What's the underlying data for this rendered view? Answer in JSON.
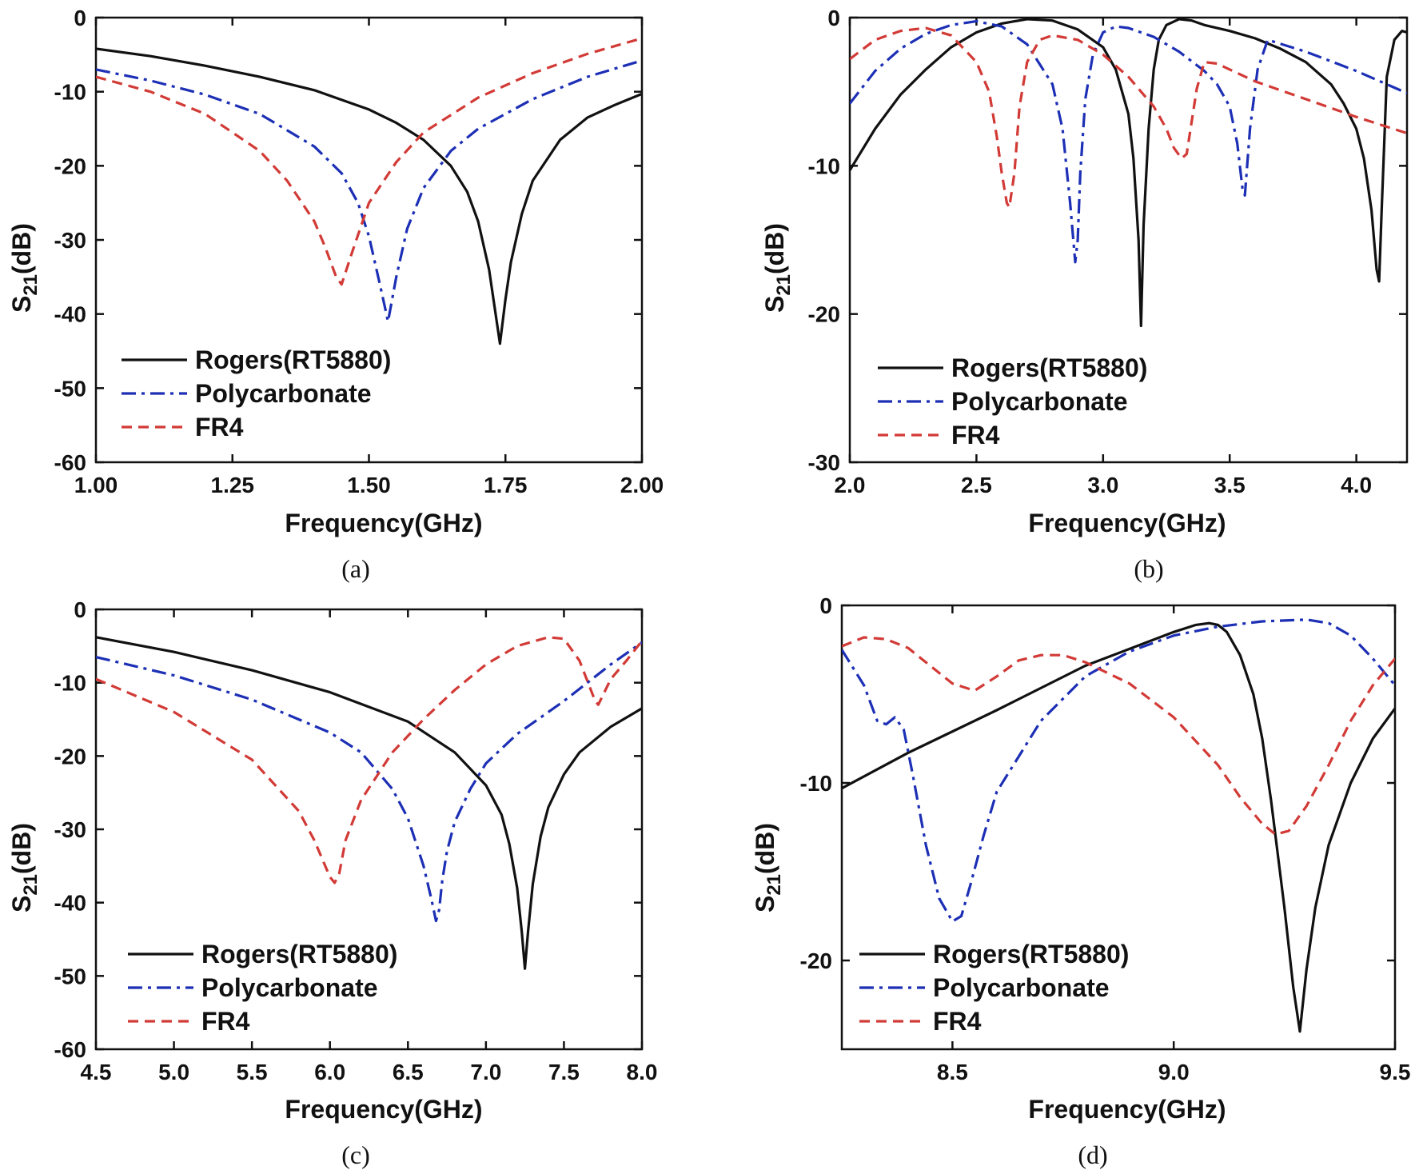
{
  "colors": {
    "rogers": "#111111",
    "polycarbonate": "#1c2fb5",
    "fr4": "#d23a36"
  },
  "legend": [
    "Rogers(RT5880)",
    "Polycarbonate",
    "FR4"
  ],
  "chart_data": [
    {
      "id": "a",
      "type": "line",
      "caption": "(a)",
      "xlabel": "Frequency(GHz)",
      "ylabel_main": "S",
      "ylabel_sub": "21",
      "ylabel_unit": "(dB)",
      "xlim": [
        1.0,
        2.0
      ],
      "ylim": [
        -60,
        0
      ],
      "xticks": [
        1.0,
        1.25,
        1.5,
        1.75,
        2.0
      ],
      "xtick_labels": [
        "1.00",
        "1.25",
        "1.50",
        "1.75",
        "2.00"
      ],
      "yticks": [
        0,
        -10,
        -20,
        -30,
        -40,
        -50,
        -60
      ],
      "ytick_labels": [
        "0",
        "-10",
        "-20",
        "-30",
        "-40",
        "-50",
        "-60"
      ],
      "series": [
        {
          "name": "Rogers(RT5880)",
          "style": "solid",
          "x": [
            1.0,
            1.1,
            1.2,
            1.3,
            1.4,
            1.5,
            1.55,
            1.6,
            1.65,
            1.68,
            1.7,
            1.72,
            1.73,
            1.74,
            1.75,
            1.76,
            1.78,
            1.8,
            1.85,
            1.9,
            1.95,
            2.0
          ],
          "y": [
            -4.2,
            -5.2,
            -6.5,
            -8.0,
            -9.8,
            -12.4,
            -14.2,
            -16.5,
            -20.0,
            -23.5,
            -27.5,
            -34.0,
            -39.0,
            -44.0,
            -38.0,
            -33.0,
            -26.5,
            -22.0,
            -16.5,
            -13.5,
            -11.8,
            -10.3
          ]
        },
        {
          "name": "Polycarbonate",
          "style": "dashdot",
          "x": [
            1.0,
            1.1,
            1.2,
            1.3,
            1.4,
            1.45,
            1.48,
            1.5,
            1.52,
            1.535,
            1.55,
            1.57,
            1.6,
            1.65,
            1.7,
            1.8,
            1.9,
            2.0
          ],
          "y": [
            -7.0,
            -8.5,
            -10.4,
            -13.0,
            -17.4,
            -21.0,
            -25.0,
            -29.5,
            -36.0,
            -41.0,
            -35.0,
            -28.5,
            -23.0,
            -18.0,
            -15.0,
            -11.0,
            -8.0,
            -5.8
          ]
        },
        {
          "name": "FR4",
          "style": "dashed",
          "x": [
            1.0,
            1.1,
            1.2,
            1.3,
            1.35,
            1.4,
            1.42,
            1.44,
            1.45,
            1.47,
            1.5,
            1.55,
            1.6,
            1.7,
            1.8,
            1.9,
            2.0
          ],
          "y": [
            -8.0,
            -10.0,
            -13.0,
            -18.0,
            -22.0,
            -27.5,
            -31.0,
            -35.0,
            -36.0,
            -31.5,
            -25.0,
            -19.5,
            -15.5,
            -10.8,
            -7.5,
            -4.9,
            -2.8
          ]
        }
      ]
    },
    {
      "id": "b",
      "type": "line",
      "caption": "(b)",
      "xlabel": "Frequency(GHz)",
      "ylabel_main": "S",
      "ylabel_sub": "21",
      "ylabel_unit": "(dB)",
      "xlim": [
        2.0,
        4.2
      ],
      "ylim": [
        -30,
        0
      ],
      "xticks": [
        2.0,
        2.5,
        3.0,
        3.5,
        4.0
      ],
      "xtick_labels": [
        "2.0",
        "2.5",
        "3.0",
        "3.5",
        "4.0"
      ],
      "yticks": [
        0,
        -10,
        -20,
        -30
      ],
      "ytick_labels": [
        "0",
        "-10",
        "-20",
        "-30"
      ],
      "series": [
        {
          "name": "Rogers(RT5880)",
          "style": "solid",
          "x": [
            2.0,
            2.1,
            2.2,
            2.3,
            2.4,
            2.5,
            2.6,
            2.7,
            2.8,
            2.9,
            3.0,
            3.05,
            3.1,
            3.12,
            3.14,
            3.15,
            3.16,
            3.18,
            3.2,
            3.22,
            3.25,
            3.3,
            3.35,
            3.4,
            3.5,
            3.6,
            3.7,
            3.8,
            3.9,
            3.95,
            4.0,
            4.03,
            4.06,
            4.08,
            4.09,
            4.1,
            4.12,
            4.15,
            4.18,
            4.2
          ],
          "y": [
            -10.3,
            -7.5,
            -5.2,
            -3.5,
            -2.0,
            -1.0,
            -0.4,
            -0.1,
            -0.2,
            -0.8,
            -2.0,
            -3.5,
            -6.5,
            -9.5,
            -15.0,
            -20.8,
            -14.0,
            -7.5,
            -3.5,
            -1.5,
            -0.5,
            -0.1,
            -0.2,
            -0.5,
            -0.9,
            -1.4,
            -2.1,
            -3.0,
            -4.5,
            -5.8,
            -7.5,
            -9.5,
            -13.0,
            -17.0,
            -17.8,
            -13.0,
            -4.0,
            -1.5,
            -0.9,
            -1.0
          ]
        },
        {
          "name": "Polycarbonate",
          "style": "dashdot",
          "x": [
            2.0,
            2.1,
            2.2,
            2.3,
            2.4,
            2.5,
            2.6,
            2.7,
            2.8,
            2.84,
            2.87,
            2.89,
            2.9,
            2.91,
            2.93,
            2.96,
            3.0,
            3.05,
            3.1,
            3.2,
            3.3,
            3.4,
            3.45,
            3.5,
            3.53,
            3.55,
            3.56,
            3.58,
            3.61,
            3.65,
            3.8,
            4.0,
            4.2
          ],
          "y": [
            -5.8,
            -3.6,
            -2.1,
            -1.1,
            -0.5,
            -0.25,
            -0.6,
            -1.8,
            -4.5,
            -7.5,
            -12.5,
            -16.5,
            -15.0,
            -10.5,
            -5.5,
            -2.5,
            -1.0,
            -0.6,
            -0.7,
            -1.3,
            -2.3,
            -3.6,
            -4.5,
            -6.0,
            -8.5,
            -11.5,
            -12.0,
            -7.5,
            -3.5,
            -1.5,
            -2.3,
            -3.6,
            -5.1
          ]
        },
        {
          "name": "FR4",
          "style": "dashed",
          "x": [
            2.0,
            2.1,
            2.2,
            2.3,
            2.4,
            2.5,
            2.55,
            2.58,
            2.6,
            2.62,
            2.63,
            2.65,
            2.67,
            2.7,
            2.75,
            2.8,
            2.9,
            3.0,
            3.1,
            3.2,
            3.25,
            3.28,
            3.31,
            3.33,
            3.35,
            3.37,
            3.4,
            3.45,
            3.5,
            3.6,
            3.8,
            4.0,
            4.2
          ],
          "y": [
            -2.8,
            -1.5,
            -0.9,
            -0.7,
            -1.2,
            -3.0,
            -5.0,
            -8.0,
            -10.5,
            -12.5,
            -12.8,
            -10.5,
            -6.0,
            -3.0,
            -1.5,
            -1.2,
            -1.5,
            -2.5,
            -4.0,
            -6.0,
            -7.5,
            -8.8,
            -9.5,
            -9.2,
            -7.0,
            -4.8,
            -3.0,
            -3.1,
            -3.5,
            -4.3,
            -5.5,
            -6.7,
            -7.8
          ]
        }
      ]
    },
    {
      "id": "c",
      "type": "line",
      "caption": "(c)",
      "xlabel": "Frequency(GHz)",
      "ylabel_main": "S",
      "ylabel_sub": "21",
      "ylabel_unit": "(dB)",
      "xlim": [
        4.5,
        8.0
      ],
      "ylim": [
        -60,
        0
      ],
      "xticks": [
        4.5,
        5.0,
        5.5,
        6.0,
        6.5,
        7.0,
        7.5,
        8.0
      ],
      "xtick_labels": [
        "4.5",
        "5.0",
        "5.5",
        "6.0",
        "6.5",
        "7.0",
        "7.5",
        "8.0"
      ],
      "yticks": [
        0,
        -10,
        -20,
        -30,
        -40,
        -50,
        -60
      ],
      "ytick_labels": [
        "0",
        "-10",
        "-20",
        "-30",
        "-40",
        "-50",
        "-60"
      ],
      "series": [
        {
          "name": "Rogers(RT5880)",
          "style": "solid",
          "x": [
            4.5,
            5.0,
            5.5,
            6.0,
            6.5,
            6.8,
            7.0,
            7.1,
            7.15,
            7.2,
            7.23,
            7.25,
            7.27,
            7.3,
            7.35,
            7.4,
            7.5,
            7.6,
            7.8,
            8.0
          ],
          "y": [
            -3.8,
            -5.8,
            -8.3,
            -11.3,
            -15.3,
            -19.5,
            -24.0,
            -28.0,
            -32.0,
            -38.0,
            -44.0,
            -49.0,
            -44.0,
            -37.5,
            -31.0,
            -27.0,
            -22.5,
            -19.5,
            -16.0,
            -13.5
          ]
        },
        {
          "name": "Polycarbonate",
          "style": "dashdot",
          "x": [
            4.5,
            5.0,
            5.5,
            6.0,
            6.2,
            6.4,
            6.5,
            6.6,
            6.65,
            6.68,
            6.7,
            6.72,
            6.75,
            6.8,
            6.9,
            7.0,
            7.2,
            7.5,
            7.8,
            8.0
          ],
          "y": [
            -6.5,
            -9.0,
            -12.3,
            -16.8,
            -19.5,
            -24.5,
            -28.5,
            -35.0,
            -39.5,
            -42.5,
            -41.0,
            -37.0,
            -33.0,
            -29.0,
            -24.5,
            -21.0,
            -17.0,
            -12.5,
            -7.5,
            -4.5
          ]
        },
        {
          "name": "FR4",
          "style": "dashed",
          "x": [
            4.5,
            5.0,
            5.5,
            5.8,
            5.9,
            6.0,
            6.03,
            6.06,
            6.1,
            6.2,
            6.4,
            6.6,
            6.8,
            7.0,
            7.2,
            7.4,
            7.5,
            7.6,
            7.7,
            7.72,
            7.8,
            7.9,
            8.0
          ],
          "y": [
            -9.5,
            -14.0,
            -20.5,
            -27.5,
            -31.5,
            -36.5,
            -37.3,
            -36.0,
            -31.5,
            -26.0,
            -19.5,
            -15.0,
            -11.0,
            -7.5,
            -5.0,
            -3.8,
            -4.0,
            -7.0,
            -12.5,
            -13.0,
            -9.5,
            -7.0,
            -4.3
          ]
        }
      ]
    },
    {
      "id": "d",
      "type": "line",
      "caption": "(d)",
      "xlabel": "Frequency(GHz)",
      "ylabel_main": "S",
      "ylabel_sub": "21",
      "ylabel_unit": "(dB)",
      "xlim": [
        8.25,
        9.5
      ],
      "ylim": [
        -25,
        0
      ],
      "xticks": [
        8.5,
        9.0,
        9.5
      ],
      "xtick_labels": [
        "8.5",
        "9.0",
        "9.5"
      ],
      "yticks": [
        0,
        -10,
        -20
      ],
      "ytick_labels": [
        "0",
        "-10",
        "-20"
      ],
      "series": [
        {
          "name": "Rogers(RT5880)",
          "style": "solid",
          "x": [
            8.25,
            8.4,
            8.6,
            8.8,
            9.0,
            9.05,
            9.08,
            9.1,
            9.12,
            9.15,
            9.18,
            9.2,
            9.22,
            9.25,
            9.27,
            9.285,
            9.3,
            9.32,
            9.35,
            9.4,
            9.45,
            9.5
          ],
          "y": [
            -10.3,
            -8.3,
            -5.9,
            -3.4,
            -1.5,
            -1.1,
            -1.0,
            -1.1,
            -1.5,
            -2.8,
            -5.0,
            -7.5,
            -11.0,
            -17.0,
            -21.5,
            -24.0,
            -20.5,
            -17.0,
            -13.5,
            -10.0,
            -7.5,
            -5.8
          ]
        },
        {
          "name": "Polycarbonate",
          "style": "dashdot",
          "x": [
            8.25,
            8.3,
            8.33,
            8.35,
            8.37,
            8.39,
            8.41,
            8.44,
            8.47,
            8.5,
            8.52,
            8.54,
            8.57,
            8.6,
            8.7,
            8.8,
            8.9,
            9.0,
            9.1,
            9.2,
            9.3,
            9.35,
            9.4,
            9.45,
            9.5
          ],
          "y": [
            -2.5,
            -4.5,
            -6.5,
            -6.7,
            -6.3,
            -7.0,
            -9.5,
            -13.5,
            -16.5,
            -17.8,
            -17.5,
            -15.8,
            -13.0,
            -10.5,
            -6.5,
            -4.0,
            -2.6,
            -1.7,
            -1.2,
            -0.9,
            -0.8,
            -1.0,
            -1.7,
            -3.0,
            -4.5
          ]
        },
        {
          "name": "FR4",
          "style": "dashed",
          "x": [
            8.25,
            8.3,
            8.35,
            8.4,
            8.45,
            8.5,
            8.55,
            8.6,
            8.65,
            8.7,
            8.75,
            8.8,
            8.9,
            9.0,
            9.1,
            9.15,
            9.2,
            9.23,
            9.26,
            9.3,
            9.35,
            9.4,
            9.45,
            9.5
          ],
          "y": [
            -2.3,
            -1.8,
            -1.9,
            -2.4,
            -3.4,
            -4.4,
            -4.8,
            -4.0,
            -3.1,
            -2.8,
            -2.8,
            -3.2,
            -4.4,
            -6.3,
            -9.0,
            -10.8,
            -12.3,
            -12.9,
            -12.7,
            -11.3,
            -9.0,
            -6.5,
            -4.5,
            -3.0
          ]
        }
      ]
    }
  ]
}
